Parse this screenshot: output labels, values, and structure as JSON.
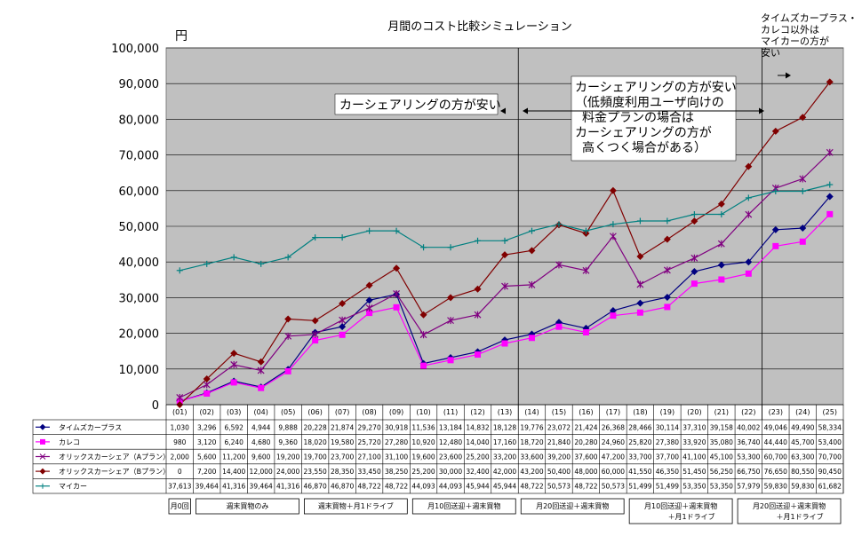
{
  "chart_data": {
    "type": "line",
    "title": "月間のコスト比較シミュレーション",
    "unit": "円",
    "ylim": [
      0,
      100000
    ],
    "yticks": [
      "0",
      "10,000",
      "20,000",
      "30,000",
      "40,000",
      "50,000",
      "60,000",
      "70,000",
      "80,000",
      "90,000",
      "100,000"
    ],
    "x": [
      "(01)",
      "(02)",
      "(03)",
      "(04)",
      "(05)",
      "(06)",
      "(07)",
      "(08)",
      "(09)",
      "(10)",
      "(11)",
      "(12)",
      "(13)",
      "(14)",
      "(15)",
      "(16)",
      "(17)",
      "(18)",
      "(19)",
      "(20)",
      "(21)",
      "(22)",
      "(23)",
      "(24)",
      "(25)"
    ],
    "grid": "horizontal",
    "legend": "table-bottom",
    "series": [
      {
        "name": "タイムズカープラス",
        "color": "#000080",
        "marker": "diamond",
        "values": [
          1030,
          3296,
          6592,
          4944,
          9888,
          20228,
          21874,
          29270,
          30918,
          11536,
          13184,
          14832,
          18128,
          19776,
          23072,
          21424,
          26368,
          28466,
          30114,
          37310,
          39158,
          40002,
          49046,
          49490,
          58334
        ],
        "labels": [
          "1,030",
          "3,296",
          "6,592",
          "4,944",
          "9,888",
          "20,228",
          "21,874",
          "29,270",
          "30,918",
          "11,536",
          "13,184",
          "14,832",
          "18,128",
          "19,776",
          "23,072",
          "21,424",
          "26,368",
          "28,466",
          "30,114",
          "37,310",
          "39,158",
          "40,002",
          "49,046",
          "49,490",
          "58,334"
        ]
      },
      {
        "name": "カレコ",
        "color": "#ff00ff",
        "marker": "square",
        "values": [
          980,
          3120,
          6240,
          4680,
          9360,
          18020,
          19580,
          25720,
          27280,
          10920,
          12480,
          14040,
          17160,
          18720,
          21840,
          20280,
          24960,
          25820,
          27380,
          33920,
          35080,
          36740,
          44440,
          45700,
          53400
        ],
        "labels": [
          "980",
          "3,120",
          "6,240",
          "4,680",
          "9,360",
          "18,020",
          "19,580",
          "25,720",
          "27,280",
          "10,920",
          "12,480",
          "14,040",
          "17,160",
          "18,720",
          "21,840",
          "20,280",
          "24,960",
          "25,820",
          "27,380",
          "33,920",
          "35,080",
          "36,740",
          "44,440",
          "45,700",
          "53,400"
        ]
      },
      {
        "name": "オリックスカーシェア（Aプラン）",
        "color": "#800080",
        "marker": "star",
        "values": [
          2000,
          5600,
          11200,
          9600,
          19200,
          19700,
          23700,
          27100,
          31100,
          19600,
          23600,
          25200,
          33200,
          33600,
          39200,
          37600,
          47200,
          33700,
          37700,
          41100,
          45100,
          53300,
          60700,
          63300,
          70700
        ],
        "labels": [
          "2,000",
          "5,600",
          "11,200",
          "9,600",
          "19,200",
          "19,700",
          "23,700",
          "27,100",
          "31,100",
          "19,600",
          "23,600",
          "25,200",
          "33,200",
          "33,600",
          "39,200",
          "37,600",
          "47,200",
          "33,700",
          "37,700",
          "41,100",
          "45,100",
          "53,300",
          "60,700",
          "63,300",
          "70,700"
        ]
      },
      {
        "name": "オリックスカーシェア（Bプラン）",
        "color": "#800000",
        "marker": "diamond",
        "values": [
          0,
          7200,
          14400,
          12000,
          24000,
          23550,
          28350,
          33450,
          38250,
          25200,
          30000,
          32400,
          42000,
          43200,
          50400,
          48000,
          60000,
          41550,
          46350,
          51450,
          56250,
          66750,
          76650,
          80550,
          90450
        ],
        "labels": [
          "0",
          "7,200",
          "14,400",
          "12,000",
          "24,000",
          "23,550",
          "28,350",
          "33,450",
          "38,250",
          "25,200",
          "30,000",
          "32,400",
          "42,000",
          "43,200",
          "50,400",
          "48,000",
          "60,000",
          "41,550",
          "46,350",
          "51,450",
          "56,250",
          "66,750",
          "76,650",
          "80,550",
          "90,450"
        ]
      },
      {
        "name": "マイカー",
        "color": "#008080",
        "marker": "plus",
        "values": [
          37613,
          39464,
          41316,
          39464,
          41316,
          46870,
          46870,
          48722,
          48722,
          44093,
          44093,
          45944,
          45944,
          48722,
          50573,
          48722,
          50573,
          51499,
          51499,
          53350,
          53350,
          57979,
          59830,
          59830,
          61682
        ],
        "labels": [
          "37,613",
          "39,464",
          "41,316",
          "39,464",
          "41,316",
          "46,870",
          "46,870",
          "48,722",
          "48,722",
          "44,093",
          "44,093",
          "45,944",
          "45,944",
          "48,722",
          "50,573",
          "48,722",
          "50,573",
          "51,499",
          "51,499",
          "53,350",
          "53,350",
          "57,979",
          "59,830",
          "59,830",
          "61,682"
        ]
      }
    ],
    "annotations": {
      "left": "カーシェアリングの方が安い",
      "middle": [
        "カーシェアリングの方が安い",
        "（低頻度利用ユーザ向けの",
        "料金プランの場合は",
        "カーシェアリングの方が",
        "高くつく場合がある）"
      ],
      "right": [
        "タイムズカープラス・",
        "カレコ以外は",
        "マイカーの方が",
        "安い"
      ]
    },
    "plans": [
      {
        "label": "月0回",
        "from": 0,
        "to": 0
      },
      {
        "label": "週末買物のみ",
        "from": 1,
        "to": 4
      },
      {
        "label": "週末買物＋月1ドライブ",
        "from": 5,
        "to": 8
      },
      {
        "label": "月10回送迎＋週末買物",
        "from": 9,
        "to": 12
      },
      {
        "label": "月20回送迎＋週末買物",
        "from": 13,
        "to": 16
      },
      {
        "label": "月10回送迎＋週末買物\n＋月1ドライブ",
        "from": 17,
        "to": 20
      },
      {
        "label": "月20回送迎＋週末買物\n＋月1ドライブ",
        "from": 21,
        "to": 24
      }
    ]
  }
}
